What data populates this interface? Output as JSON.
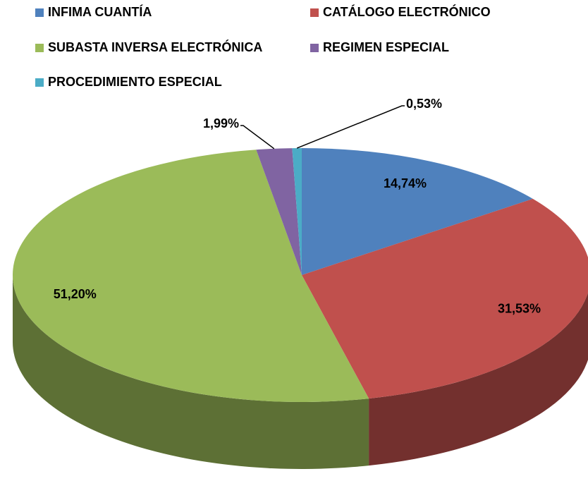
{
  "chart_data": {
    "type": "pie",
    "categories": [
      "INFIMA CUANTÍA",
      "CATÁLOGO ELECTRÓNICO",
      "SUBASTA INVERSA ELECTRÓNICA",
      "REGIMEN ESPECIAL",
      "PROCEDIMIENTO ESPECIAL"
    ],
    "values": [
      14.74,
      31.53,
      51.2,
      1.99,
      0.53
    ],
    "value_labels": [
      "14,74%",
      "31,53%",
      "51,20%",
      "1,99%",
      "0,53%"
    ],
    "colors": [
      "#4f81bd",
      "#c0504d",
      "#9bbb59",
      "#8064a2",
      "#4bacc6"
    ]
  }
}
